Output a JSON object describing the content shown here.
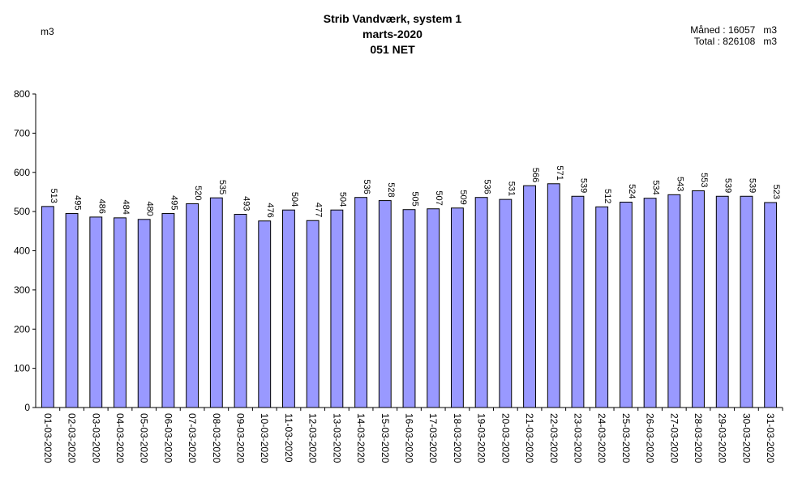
{
  "header": {
    "title_line1": "Strib Vandværk, system 1",
    "title_line2": "marts-2020",
    "title_line3": "051 NET",
    "unit": "m3",
    "month_label": "Måned : 16057   m3",
    "total_label": "Total : 826108   m3"
  },
  "colors": {
    "bar_fill": "#9999ff",
    "bar_stroke": "#000000",
    "axis": "#000000"
  },
  "chart_data": {
    "type": "bar",
    "title": "Strib Vandværk, system 1",
    "ylabel": "m3",
    "ylim": [
      0,
      800
    ],
    "yticks": [
      0,
      100,
      200,
      300,
      400,
      500,
      600,
      700,
      800
    ],
    "grid": false,
    "categories": [
      "01-03-2020",
      "02-03-2020",
      "03-03-2020",
      "04-03-2020",
      "05-03-2020",
      "06-03-2020",
      "07-03-2020",
      "08-03-2020",
      "09-03-2020",
      "10-03-2020",
      "11-03-2020",
      "12-03-2020",
      "13-03-2020",
      "14-03-2020",
      "15-03-2020",
      "16-03-2020",
      "17-03-2020",
      "18-03-2020",
      "19-03-2020",
      "20-03-2020",
      "21-03-2020",
      "22-03-2020",
      "23-03-2020",
      "24-03-2020",
      "25-03-2020",
      "26-03-2020",
      "27-03-2020",
      "28-03-2020",
      "29-03-2020",
      "30-03-2020",
      "31-03-2020"
    ],
    "values": [
      513,
      495,
      486,
      484,
      480,
      495,
      520,
      535,
      493,
      476,
      504,
      477,
      504,
      536,
      528,
      505,
      507,
      509,
      536,
      531,
      566,
      571,
      539,
      512,
      524,
      534,
      543,
      553,
      539,
      539,
      523
    ]
  }
}
